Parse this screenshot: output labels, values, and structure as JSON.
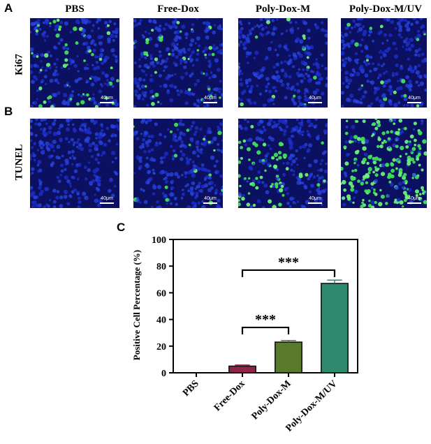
{
  "panels": {
    "a": "A",
    "b": "B",
    "c": "C"
  },
  "columns": [
    "PBS",
    "Free-Dox",
    "Poly-Dox-M",
    "Poly-Dox-M/UV"
  ],
  "rows": {
    "ki67": "Ki67",
    "tunel": "TUNEL"
  },
  "scale_bar_label": "40μm",
  "chart_data": {
    "type": "bar",
    "categories": [
      "PBS",
      "Free-Dox",
      "Poly-Dox-M",
      "Poly-Dox-M/UV"
    ],
    "values": [
      0,
      5,
      23,
      67
    ],
    "errors": [
      0,
      0.8,
      1.2,
      2.5
    ],
    "ylabel": "Positive Cell Percentage (%)",
    "ylim": [
      0,
      100
    ],
    "yticks": [
      0,
      20,
      40,
      60,
      80,
      100
    ],
    "colors": [
      "#8e2448",
      "#8e2448",
      "#5a7a2b",
      "#2e8a6e"
    ],
    "significance": [
      {
        "from": "Free-Dox",
        "to": "Poly-Dox-M",
        "label": "***"
      },
      {
        "from": "Free-Dox",
        "to": "Poly-Dox-M/UV",
        "label": "***"
      }
    ]
  }
}
